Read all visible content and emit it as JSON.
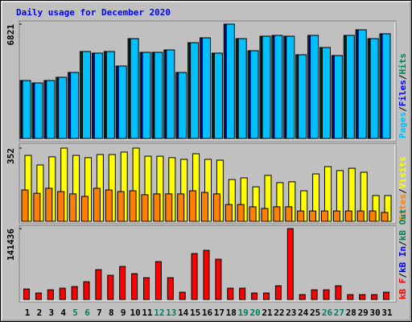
{
  "chart_data": [
    {
      "type": "bar",
      "title": "Daily usage for December 2020",
      "ylim": [
        0,
        6821
      ],
      "yticks": [
        6821
      ],
      "legend_separator": "/",
      "series": [
        {
          "name": "Hits",
          "color": "#00805c",
          "values": [
            3458,
            3314,
            3458,
            3650,
            3939,
            5188,
            5092,
            5188,
            4323,
            5957,
            5140,
            5140,
            5284,
            3939,
            5716,
            6005,
            5092,
            6821,
            5957,
            5236,
            6101,
            6149,
            6101,
            4996,
            6149,
            5428,
            4948,
            6149,
            6485,
            5957,
            6245
          ]
        },
        {
          "name": "Files",
          "color": "#0000ff",
          "values": [
            3458,
            3314,
            3458,
            3650,
            3939,
            5188,
            5092,
            5188,
            4323,
            5957,
            5140,
            5140,
            5284,
            3939,
            5716,
            6005,
            5092,
            6821,
            5957,
            5236,
            6101,
            6149,
            6101,
            4996,
            6149,
            5428,
            4948,
            6149,
            6485,
            5957,
            6245
          ]
        },
        {
          "name": "Pages",
          "color": "#00c0ff",
          "values": [
            3458,
            3314,
            3458,
            3650,
            3939,
            5188,
            5092,
            5188,
            4323,
            5957,
            5140,
            5140,
            5284,
            3939,
            5716,
            6005,
            5092,
            6821,
            5957,
            5236,
            6101,
            6149,
            6101,
            4996,
            6149,
            5428,
            4948,
            6149,
            6485,
            5957,
            6245
          ]
        }
      ]
    },
    {
      "type": "bar",
      "ylim": [
        0,
        352
      ],
      "yticks": [
        352
      ],
      "legend_separator": "/",
      "series": [
        {
          "name": "Visits",
          "color": "#ffff00",
          "values": [
            317,
            271,
            310,
            352,
            317,
            306,
            321,
            321,
            333,
            352,
            313,
            313,
            306,
            298,
            325,
            298,
            294,
            201,
            209,
            166,
            221,
            186,
            190,
            147,
            228,
            263,
            244,
            255,
            236,
            124,
            124
          ]
        },
        {
          "name": "Sites",
          "color": "#ff8000",
          "values": [
            151,
            135,
            159,
            143,
            132,
            120,
            159,
            151,
            143,
            147,
            128,
            132,
            132,
            132,
            147,
            139,
            132,
            81,
            81,
            70,
            62,
            70,
            70,
            50,
            50,
            50,
            50,
            50,
            50,
            50,
            43
          ]
        }
      ]
    },
    {
      "type": "bar",
      "ylim": [
        0,
        141436
      ],
      "yticks": [
        141436
      ],
      "legend_separator": "/",
      "categories": [
        "1",
        "2",
        "3",
        "4",
        "5",
        "6",
        "7",
        "8",
        "9",
        "10",
        "11",
        "12",
        "13",
        "14",
        "15",
        "16",
        "17",
        "18",
        "19",
        "20",
        "21",
        "22",
        "23",
        "24",
        "25",
        "26",
        "27",
        "28",
        "29",
        "30",
        "31"
      ],
      "category_colors": [
        "#000000",
        "#000000",
        "#000000",
        "#000000",
        "#00805c",
        "#00805c",
        "#000000",
        "#000000",
        "#000000",
        "#000000",
        "#000000",
        "#00805c",
        "#00805c",
        "#000000",
        "#000000",
        "#000000",
        "#000000",
        "#000000",
        "#00805c",
        "#00805c",
        "#000000",
        "#000000",
        "#000000",
        "#000000",
        "#000000",
        "#00805c",
        "#00805c",
        "#000000",
        "#000000",
        "#000000",
        "#000000"
      ],
      "series": [
        {
          "name": "kB Out",
          "color": "#00805c"
        },
        {
          "name": "kB In",
          "color": "#0000ff"
        },
        {
          "name": "kB F",
          "color": "#ff0000",
          "values": [
            20893,
            12857,
            19286,
            22500,
            25714,
            35357,
            59464,
            48214,
            65893,
            51429,
            43393,
            75536,
            43393,
            14464,
            91607,
            98036,
            80357,
            22500,
            22500,
            12857,
            12857,
            27321,
            141436,
            9643,
            19286,
            19286,
            27321,
            9643,
            9643,
            9643,
            14464
          ]
        }
      ]
    }
  ]
}
